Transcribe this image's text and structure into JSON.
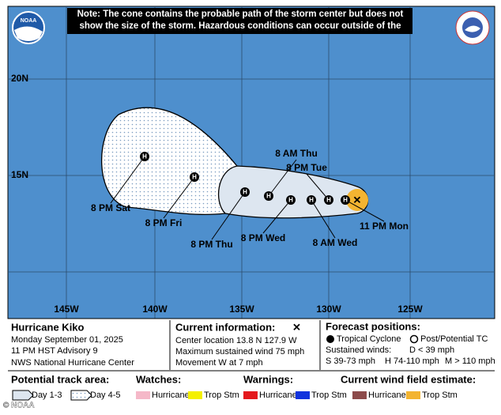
{
  "note": "Note: The cone contains the probable path of the storm center but does not show the size of the storm. Hazardous conditions can occur outside of the cone.",
  "logo": {
    "left": "NOAA"
  },
  "credit": "© NOAA",
  "map": {
    "lat_labels": [
      "20N",
      "15N"
    ],
    "lon_labels": [
      "145W",
      "140W",
      "135W",
      "130W",
      "125W"
    ],
    "positions": [
      {
        "label": "8 PM Sat",
        "marker": "H"
      },
      {
        "label": "8 PM Fri",
        "marker": "H"
      },
      {
        "label": "8 PM Thu",
        "marker": "H"
      },
      {
        "label": "8 AM Thu",
        "marker": "H"
      },
      {
        "label": "8 PM Wed",
        "marker": "H"
      },
      {
        "label": "8 AM Wed",
        "marker": "H"
      },
      {
        "label": "8 PM Tue",
        "marker": "H"
      },
      {
        "label": "11 PM Mon",
        "marker": "H"
      }
    ]
  },
  "legend": {
    "storm": {
      "title": "Hurricane Kiko",
      "date": "Monday September 01, 2025",
      "advisory": "11 PM HST Advisory 9",
      "center": "NWS National Hurricane Center"
    },
    "current": {
      "title": "Current information:",
      "lines": [
        "Center location 13.8 N 127.9 W",
        "Maximum sustained wind 75 mph",
        "Movement W at 7 mph"
      ]
    },
    "forecast": {
      "title": "Forecast positions:",
      "tropical": "Tropical Cyclone",
      "post": "Post/Potential TC",
      "winds": "Sustained winds:",
      "d": "D < 39 mph",
      "s": "S 39-73 mph",
      "h": "H 74-110 mph",
      "m": "M > 110 mph"
    },
    "track": {
      "title": "Potential track area:",
      "day13": "Day 1-3",
      "day45": "Day 4-5"
    },
    "watches": {
      "title": "Watches:",
      "hurricane": "Hurricane",
      "tropstm": "Trop Stm"
    },
    "warnings": {
      "title": "Warnings:",
      "hurricane": "Hurricane",
      "tropstm": "Trop Stm"
    },
    "wind": {
      "title": "Current wind field estimate:",
      "hurricane": "Hurricane",
      "tropstm": "Trop Stm"
    }
  }
}
